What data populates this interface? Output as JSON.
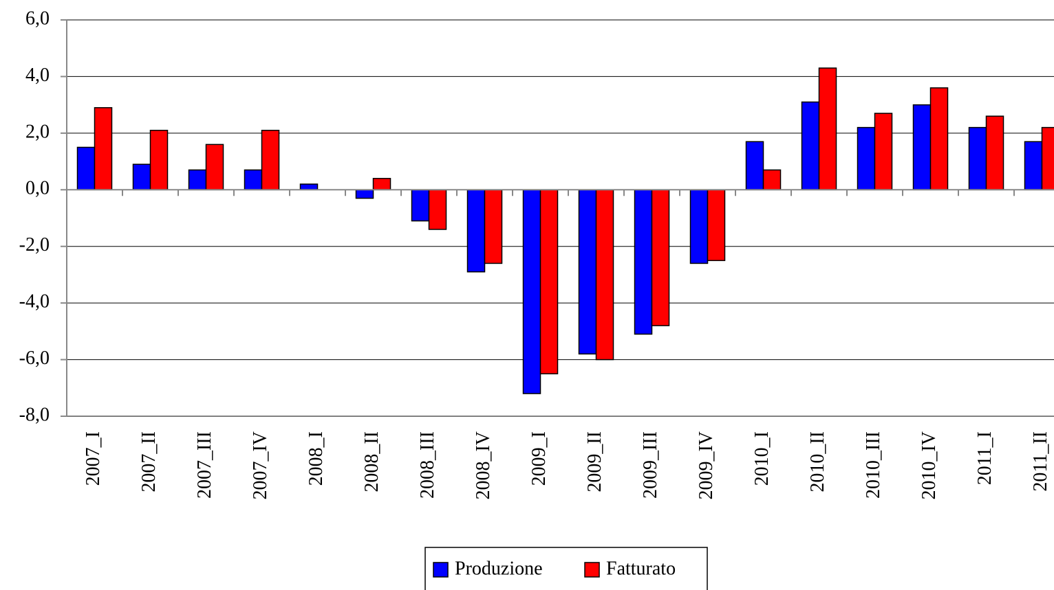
{
  "chart_data": {
    "type": "bar",
    "categories": [
      "2007_I",
      "2007_II",
      "2007_III",
      "2007_IV",
      "2008_I",
      "2008_II",
      "2008_III",
      "2008_IV",
      "2009_I",
      "2009_II",
      "2009_III",
      "2009_IV",
      "2010_I",
      "2010_II",
      "2010_III",
      "2010_IV",
      "2011_I",
      "2011_II"
    ],
    "series": [
      {
        "name": "Produzione",
        "color": "#0000ff",
        "values": [
          1.5,
          0.9,
          0.7,
          0.7,
          0.2,
          -0.3,
          -1.1,
          -2.9,
          -7.2,
          -5.8,
          -5.1,
          -2.6,
          1.7,
          3.1,
          2.2,
          3.0,
          2.2,
          1.7
        ]
      },
      {
        "name": "Fatturato",
        "color": "#ff0000",
        "values": [
          2.9,
          2.1,
          1.6,
          2.1,
          0,
          0.4,
          -1.4,
          -2.6,
          -6.5,
          -6.0,
          -4.8,
          -2.5,
          0.7,
          4.3,
          2.7,
          3.6,
          2.6,
          2.2
        ]
      }
    ],
    "ylim": [
      -8,
      6
    ],
    "yticks": [
      {
        "value": -8,
        "label": "-8,0"
      },
      {
        "value": -6,
        "label": "-6,0"
      },
      {
        "value": -4,
        "label": "-4,0"
      },
      {
        "value": -2,
        "label": "-2,0"
      },
      {
        "value": 0,
        "label": "0,0"
      },
      {
        "value": 2,
        "label": "2,0"
      },
      {
        "value": 4,
        "label": "4,0"
      },
      {
        "value": 6,
        "label": "6,0"
      }
    ],
    "grid": true,
    "legend": "bottom"
  }
}
